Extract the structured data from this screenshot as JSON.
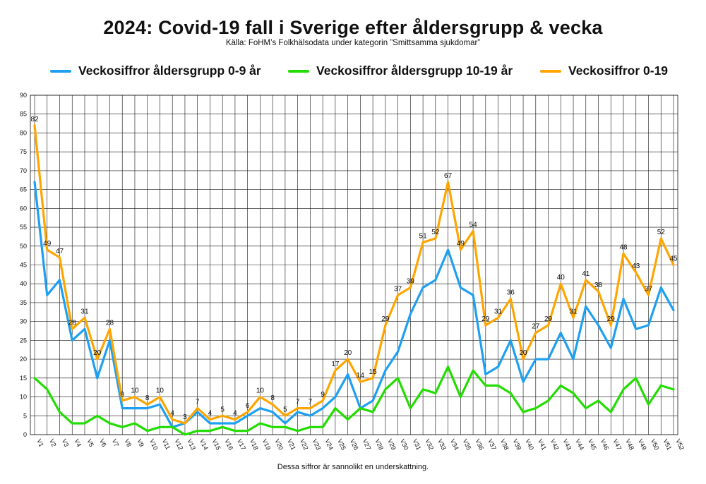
{
  "header": {
    "title": "2024: Covid-19 fall i Sverige efter åldersgrupp & vecka",
    "subtitle": "Källa: FoHM’s Folkhälsodata under kategorin ”Smittsamma sjukdomar”"
  },
  "footnote": "Dessa siffror är sannolikt en underskattning.",
  "colors": {
    "series_0_9": "#1EA0F0",
    "series_10_19": "#22DD00",
    "series_0_19": "#FFA500",
    "grid": "#111111"
  },
  "chart_data": {
    "type": "line",
    "title": "2024: Covid-19 fall i Sverige efter åldersgrupp & vecka",
    "xlabel": "",
    "ylabel": "",
    "ylim": [
      0,
      90
    ],
    "y_ticks": [
      0,
      5,
      10,
      15,
      20,
      25,
      30,
      35,
      40,
      45,
      50,
      55,
      60,
      65,
      70,
      75,
      80,
      85,
      90
    ],
    "grid": true,
    "legend_position": "top",
    "categories": [
      "V1",
      "V2",
      "V3",
      "V4",
      "V5",
      "V6",
      "V7",
      "V8",
      "V9",
      "V10",
      "V11",
      "V12",
      "V13",
      "V14",
      "V15",
      "V16",
      "V17",
      "V18",
      "V19",
      "V20",
      "V21",
      "V22",
      "V23",
      "V24",
      "V25",
      "V26",
      "V27",
      "V28",
      "V29",
      "V30",
      "V31",
      "V32",
      "V33",
      "V34",
      "V35",
      "V36",
      "V37",
      "V38",
      "V39",
      "V40",
      "V41",
      "V42",
      "V43",
      "V44",
      "V45",
      "V46",
      "V47",
      "V48",
      "V49",
      "V50",
      "V51",
      "V52"
    ],
    "series": [
      {
        "name": "Veckosiffror åldersgrupp 0-9 år",
        "color": "#1EA0F0",
        "values": [
          67,
          37,
          41,
          25,
          28,
          15,
          25,
          7,
          7,
          7,
          8,
          2,
          3,
          6,
          3,
          3,
          3,
          5,
          7,
          6,
          3,
          6,
          5,
          7,
          10,
          16,
          7,
          9,
          17,
          22,
          32,
          39,
          41,
          49,
          39,
          37,
          16,
          18,
          25,
          14,
          20,
          20,
          27,
          20,
          34,
          29,
          23,
          36,
          28,
          29,
          39,
          33
        ]
      },
      {
        "name": "Veckosiffror åldersgrupp 10-19 år",
        "color": "#22DD00",
        "values": [
          15,
          12,
          6,
          3,
          3,
          5,
          3,
          2,
          3,
          1,
          2,
          2,
          0,
          1,
          1,
          2,
          1,
          1,
          3,
          2,
          2,
          1,
          2,
          2,
          7,
          4,
          7,
          6,
          12,
          15,
          7,
          12,
          11,
          18,
          10,
          17,
          13,
          13,
          11,
          6,
          7,
          9,
          13,
          11,
          7,
          9,
          6,
          12,
          15,
          8,
          13,
          12
        ]
      },
      {
        "name": "Veckosiffror 0-19",
        "color": "#FFA500",
        "values": [
          82,
          49,
          47,
          28,
          31,
          20,
          28,
          9,
          10,
          8,
          10,
          4,
          3,
          7,
          4,
          5,
          4,
          6,
          10,
          8,
          5,
          7,
          7,
          9,
          17,
          20,
          14,
          15,
          29,
          37,
          39,
          51,
          52,
          67,
          49,
          54,
          29,
          31,
          36,
          20,
          27,
          29,
          40,
          31,
          41,
          38,
          29,
          48,
          43,
          37,
          52,
          45
        ],
        "data_labels": [
          "82",
          "49",
          "47",
          "28",
          "31",
          "20",
          "28",
          "9",
          "10",
          "8",
          "10",
          "4",
          "3",
          "7",
          "4",
          "5",
          "4",
          "6",
          "10",
          "8",
          "5",
          "7",
          "7",
          "9",
          "17",
          "20",
          "14",
          "15",
          "29",
          "37",
          "39",
          "51",
          "52",
          "67",
          "49",
          "54",
          "29",
          "31",
          "36",
          "20",
          "27",
          "29",
          "40",
          "31",
          "41",
          "38",
          "29",
          "48",
          "43",
          "37",
          "52",
          "45"
        ]
      }
    ]
  }
}
